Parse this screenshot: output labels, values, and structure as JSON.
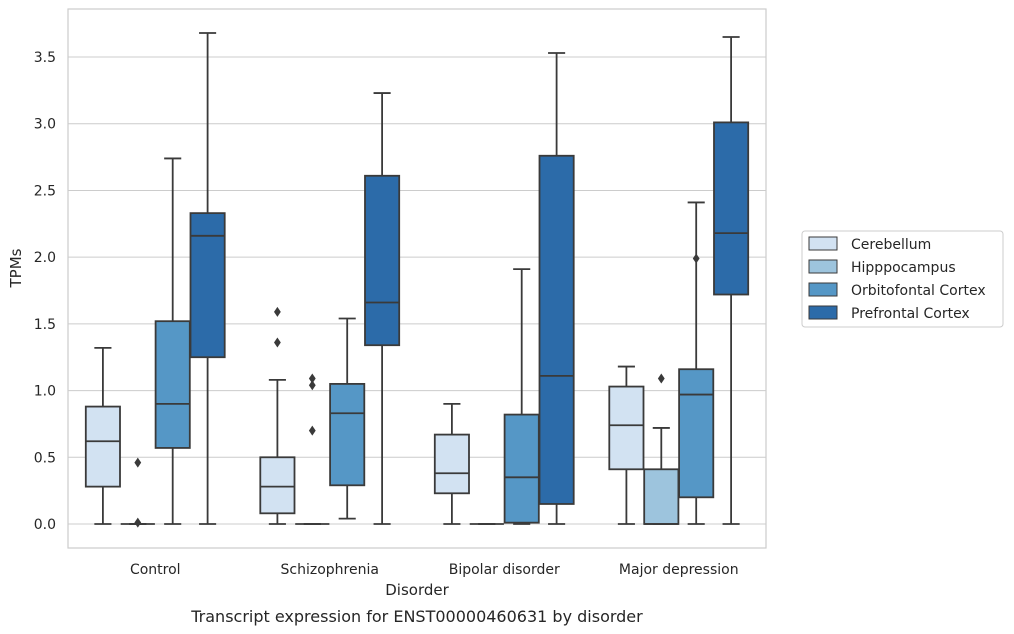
{
  "chart_data": {
    "type": "box",
    "caption": "Transcript expression for ENST00000460631 by disorder",
    "xlabel": "Disorder",
    "ylabel": "TPMs",
    "ylim": [
      -0.18,
      3.86
    ],
    "yticks": [
      0.0,
      0.5,
      1.0,
      1.5,
      2.0,
      2.5,
      3.0,
      3.5
    ],
    "ytick_labels": [
      "0.0",
      "0.5",
      "1.0",
      "1.5",
      "2.0",
      "2.5",
      "3.0",
      "3.5"
    ],
    "grid": true,
    "legend_position": "right, outside plot",
    "categories": [
      "Control",
      "Schizophrenia",
      "Bipolar disorder",
      "Major depression"
    ],
    "series": [
      {
        "name": "Cerebellum",
        "color": "#d2e2f2",
        "boxes": [
          {
            "whisker_low": 0.0,
            "q1": 0.28,
            "median": 0.62,
            "q3": 0.88,
            "whisker_high": 1.32,
            "outliers": []
          },
          {
            "whisker_low": 0.0,
            "q1": 0.08,
            "median": 0.28,
            "q3": 0.5,
            "whisker_high": 1.08,
            "outliers": [
              1.36,
              1.59
            ]
          },
          {
            "whisker_low": 0.0,
            "q1": 0.23,
            "median": 0.38,
            "q3": 0.67,
            "whisker_high": 0.9,
            "outliers": []
          },
          {
            "whisker_low": 0.0,
            "q1": 0.41,
            "median": 0.74,
            "q3": 1.03,
            "whisker_high": 1.18,
            "outliers": []
          }
        ]
      },
      {
        "name": "Hipppocampus",
        "color": "#9dc4dd",
        "boxes": [
          {
            "whisker_low": 0.0,
            "q1": 0.0,
            "median": 0.0,
            "q3": 0.0,
            "whisker_high": 0.0,
            "outliers": [
              0.46,
              0.01
            ]
          },
          {
            "whisker_low": 0.0,
            "q1": 0.0,
            "median": 0.0,
            "q3": 0.0,
            "whisker_high": 0.0,
            "outliers": [
              0.7,
              1.04,
              1.09
            ]
          },
          {
            "whisker_low": 0.0,
            "q1": 0.0,
            "median": 0.0,
            "q3": 0.0,
            "whisker_high": 0.0,
            "outliers": []
          },
          {
            "whisker_low": 0.0,
            "q1": 0.0,
            "median": 0.0,
            "q3": 0.41,
            "whisker_high": 0.72,
            "outliers": [
              1.09
            ]
          }
        ]
      },
      {
        "name": "Orbitofontal Cortex",
        "color": "#5597c6",
        "boxes": [
          {
            "whisker_low": 0.0,
            "q1": 0.57,
            "median": 0.9,
            "q3": 1.52,
            "whisker_high": 2.74,
            "outliers": []
          },
          {
            "whisker_low": 0.04,
            "q1": 0.29,
            "median": 0.83,
            "q3": 1.05,
            "whisker_high": 1.54,
            "outliers": []
          },
          {
            "whisker_low": 0.0,
            "q1": 0.01,
            "median": 0.35,
            "q3": 0.82,
            "whisker_high": 1.91,
            "outliers": []
          },
          {
            "whisker_low": 0.0,
            "q1": 0.2,
            "median": 0.97,
            "q3": 1.16,
            "whisker_high": 2.41,
            "outliers": [
              1.99
            ]
          }
        ]
      },
      {
        "name": "Prefrontal Cortex",
        "color": "#2c6ba9",
        "boxes": [
          {
            "whisker_low": 0.0,
            "q1": 1.25,
            "median": 2.16,
            "q3": 2.33,
            "whisker_high": 3.68,
            "outliers": []
          },
          {
            "whisker_low": 0.0,
            "q1": 1.34,
            "median": 1.66,
            "q3": 2.61,
            "whisker_high": 3.23,
            "outliers": []
          },
          {
            "whisker_low": 0.0,
            "q1": 0.15,
            "median": 1.11,
            "q3": 2.76,
            "whisker_high": 3.53,
            "outliers": []
          },
          {
            "whisker_low": 0.0,
            "q1": 1.72,
            "median": 2.18,
            "q3": 3.01,
            "whisker_high": 3.65,
            "outliers": []
          }
        ]
      }
    ]
  }
}
